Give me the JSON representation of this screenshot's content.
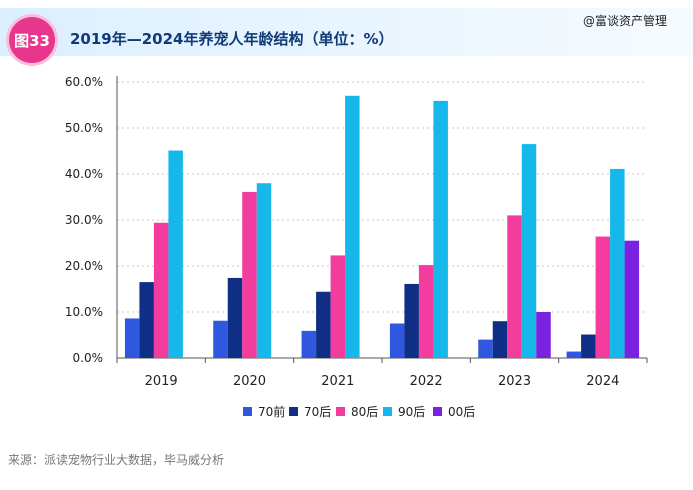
{
  "header": {
    "badge": "图33",
    "title": "2019年—2024年养宠人年龄结构（单位：%）",
    "watermark": "@富谈资产管理"
  },
  "source": "来源：派读宠物行业大数据，毕马威分析",
  "colors": {
    "series": [
      "#2f57e0",
      "#0f2f86",
      "#f43c9e",
      "#16b8ea",
      "#7a22e0"
    ],
    "grid": "#c9c9c9",
    "axis": "#555555"
  },
  "chart_data": {
    "type": "bar",
    "title": "2019年—2024年养宠人年龄结构（单位：%）",
    "categories": [
      "2019",
      "2020",
      "2021",
      "2022",
      "2023",
      "2024"
    ],
    "y_ticks": [
      "0.0%",
      "10.0%",
      "20.0%",
      "30.0%",
      "40.0%",
      "50.0%",
      "60.0%"
    ],
    "ylim": [
      0,
      60
    ],
    "grid": true,
    "legend_position": "bottom",
    "series": [
      {
        "name": "70前",
        "values": [
          8.6,
          8.1,
          5.9,
          7.5,
          4.0,
          1.4
        ]
      },
      {
        "name": "70后",
        "values": [
          16.5,
          17.4,
          14.4,
          16.1,
          8.0,
          5.1
        ]
      },
      {
        "name": "80后",
        "values": [
          29.4,
          36.1,
          22.3,
          20.2,
          31.0,
          26.4
        ]
      },
      {
        "name": "90后",
        "values": [
          45.1,
          38.0,
          57.0,
          55.9,
          46.5,
          41.1
        ]
      },
      {
        "name": "00后",
        "values": [
          0,
          0,
          0,
          0,
          10.0,
          25.5
        ]
      }
    ]
  }
}
